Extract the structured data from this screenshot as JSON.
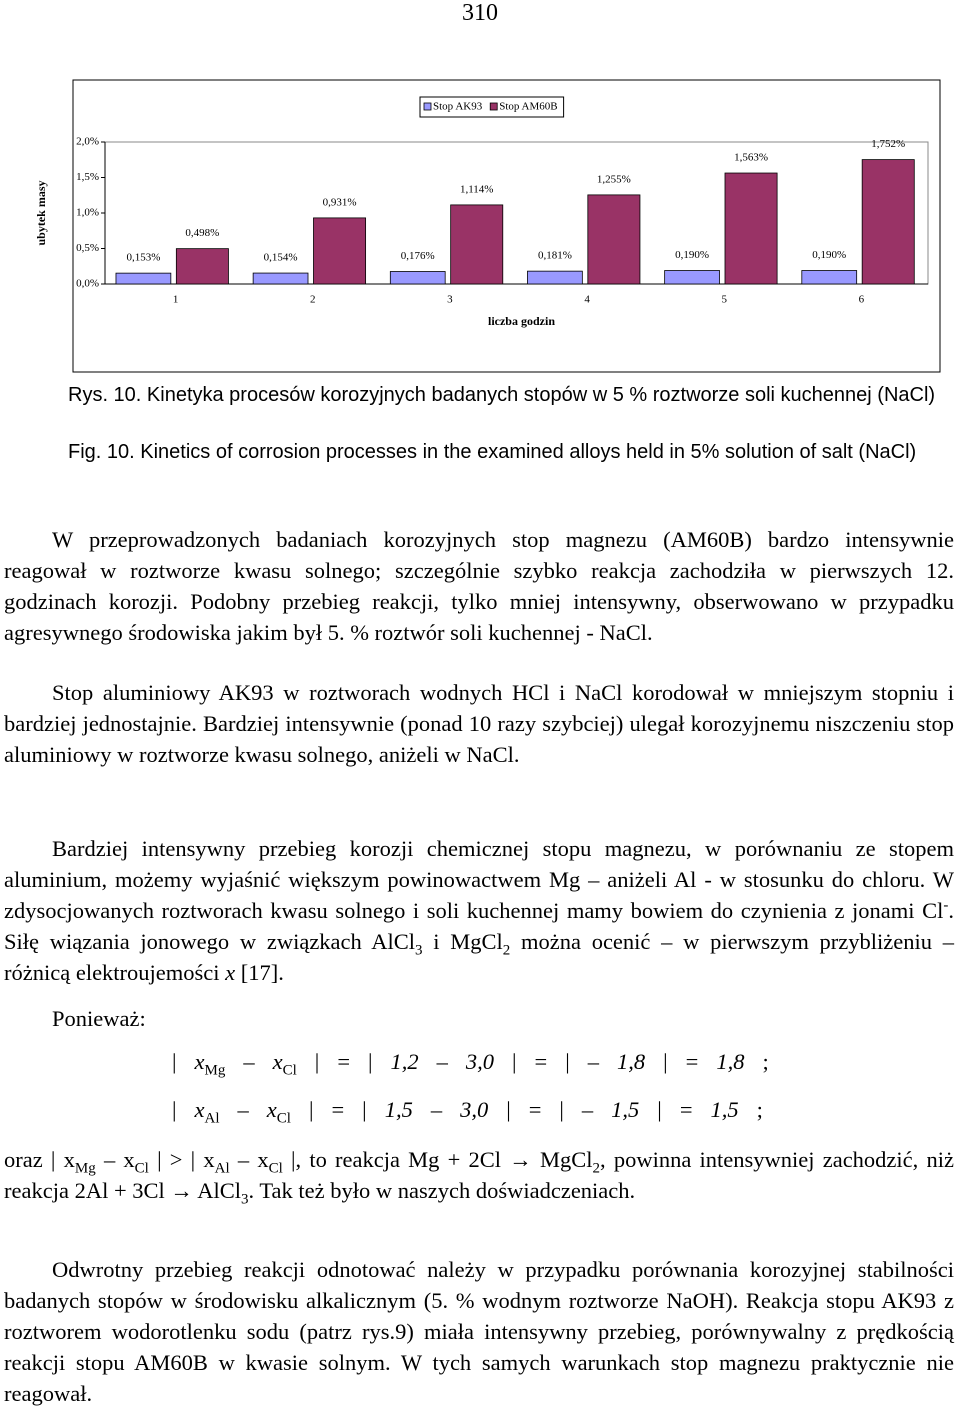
{
  "page_number": "310",
  "chart_data": {
    "type": "bar",
    "legend_position": "top",
    "ylabel": "ubytek masy",
    "xlabel": "liczba godzin",
    "categories": [
      "1",
      "2",
      "3",
      "4",
      "5",
      "6"
    ],
    "series": [
      {
        "name": "Stop AK93",
        "color": "#9999ff",
        "values": [
          0.153,
          0.154,
          0.176,
          0.181,
          0.19,
          0.19
        ],
        "value_labels": [
          "0,153%",
          "0,154%",
          "0,176%",
          "0,181%",
          "0,190%",
          "0,190%"
        ]
      },
      {
        "name": "Stop AM60B",
        "color": "#993366",
        "values": [
          0.498,
          0.931,
          1.114,
          1.255,
          1.563,
          1.752
        ],
        "value_labels": [
          "0,498%",
          "0,931%",
          "1,114%",
          "1,255%",
          "1,563%",
          "1,752%"
        ]
      }
    ],
    "ylim": [
      0,
      2
    ],
    "yticks": [
      {
        "value": 0,
        "label": "0,0%"
      },
      {
        "value": 0.5,
        "label": "0,5%"
      },
      {
        "value": 1,
        "label": "1,0%"
      },
      {
        "value": 1.5,
        "label": "1,5%"
      },
      {
        "value": 2,
        "label": "2,0%"
      }
    ],
    "grid": false
  },
  "caption": {
    "pl": "Rys. 10. Kinetyka procesów korozyjnych badanych stopów w 5 % roztworze soli kuchennej (NaCl)",
    "en": "Fig. 10. Kinetics of corrosion processes in the examined alloys held in 5% solution of salt (NaCl)"
  },
  "body": {
    "p1": "W przeprowadzonych badaniach korozyjnych stop magnezu (AM60B) bardzo intensywnie reagował w roztworze kwasu solnego; szczególnie szybko reakcja zachodziła w pierwszych 12. godzinach korozji. Podobny przebieg reakcji, tylko mniej intensywny, obserwowano w przypadku agresywnego środowiska jakim był 5. % roztwór soli kuchennej - NaCl.",
    "p2": "Stop aluminiowy AK93 w roztworach wodnych HCl i NaCl korodował w mniejszym stopniu i bardziej jednostajnie. Bardziej intensywnie (ponad 10 razy szybciej) ulegał korozyjnemu niszczeniu stop aluminiowy w roztworze kwasu solnego, aniżeli w NaCl.",
    "p3": [
      "Bardziej intensywny przebieg korozji chemicznej stopu magnezu, w porównaniu ze stopem aluminium, możemy wyjaśnić większym powinowactwem Mg – aniżeli Al - w stosunku do chloru. W zdysocjowanych roztworach kwasu solnego i soli kuchennej mamy bowiem do czynienia z jonami Cl",
      "-",
      ". Siłę wiązania jonowego w związkach AlCl",
      "3",
      " i MgCl",
      "2",
      " można ocenić – w pierwszym przybliżeniu – różnicą elektroujemości ",
      "x",
      " [17]."
    ],
    "because": "Ponieważ:",
    "f1": [
      "|",
      "x",
      "Mg",
      "–",
      "x",
      "Cl",
      "|",
      "=",
      "|",
      "1,2",
      "–",
      "3,0",
      "|",
      "=",
      "|",
      "–",
      "1,8",
      "|",
      "=",
      "1,8",
      ";"
    ],
    "f2": [
      "|",
      "x",
      "Al",
      "–",
      "x",
      "Cl",
      "|",
      "=",
      "|",
      "1,5",
      "–",
      "3,0",
      "|",
      "=",
      "|",
      "–",
      "1,5",
      "|",
      "=",
      "1,5",
      ";"
    ],
    "p4": [
      "oraz | x",
      "Mg",
      " – x",
      "Cl",
      " | > | x",
      "Al",
      " – x",
      "Cl",
      " |, to reakcja Mg + 2Cl → MgCl",
      "2",
      ", powinna intensywniej zachodzić, niż reakcja 2Al + 3Cl → AlCl",
      "3",
      ". Tak też było w naszych doświadczeniach."
    ],
    "p5": "Odwrotny przebieg reakcji odnotować należy w przypadku porównania korozyjnej stabilności badanych stopów w środowisku alkalicznym (5. % wodnym roztworze NaOH). Reakcja stopu AK93 z roztworem wodorotlenku sodu (patrz rys.9) miała intensywny przebieg, porównywalny z prędkością reakcji stopu AM60B w kwasie solnym. W tych samych warunkach stop magnezu praktycznie nie reagował."
  }
}
